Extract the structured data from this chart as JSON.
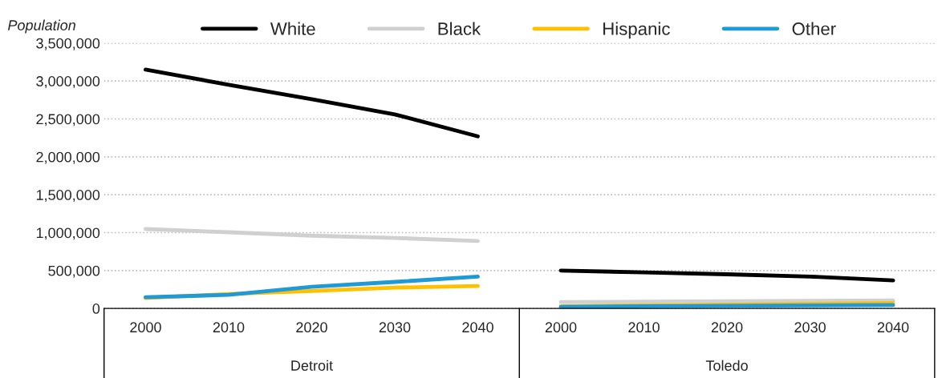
{
  "chart_data": {
    "type": "line",
    "ylabel": "Population",
    "categories": [
      "2000",
      "2010",
      "2020",
      "2030",
      "2040",
      "2000",
      "2010",
      "2020",
      "2030",
      "2040"
    ],
    "series": [
      {
        "name": "White",
        "color": "#000000",
        "values": [
          3150000,
          2950000,
          2760000,
          2560000,
          2270000,
          null,
          null,
          null,
          null,
          null
        ]
      },
      {
        "name": "Black",
        "color": "#d0d0d0",
        "values": [
          1047000,
          1005000,
          960000,
          930000,
          890000,
          null,
          null,
          null,
          null,
          null
        ]
      },
      {
        "name": "Hispanic",
        "color": "#ffc000",
        "values": [
          137000,
          190000,
          230000,
          275000,
          296000,
          null,
          null,
          null,
          null,
          null
        ]
      },
      {
        "name": "Other",
        "color": "#1f9ad6",
        "values": [
          148000,
          180000,
          285000,
          350000,
          420000,
          null,
          null,
          null,
          null,
          null
        ]
      },
      {
        "color": "#000000",
        "values": [
          null,
          null,
          null,
          null,
          null,
          500000,
          475000,
          450000,
          420000,
          370000
        ]
      },
      {
        "color": "#d0d0d0",
        "values": [
          null,
          null,
          null,
          null,
          null,
          85000,
          90000,
          95000,
          100000,
          105000
        ]
      },
      {
        "color": "#ffc000",
        "values": [
          null,
          null,
          null,
          null,
          null,
          30000,
          40000,
          50000,
          60000,
          70000
        ]
      },
      {
        "color": "#1f9ad6",
        "values": [
          null,
          null,
          null,
          null,
          null,
          20000,
          30000,
          35000,
          40000,
          45000
        ]
      }
    ],
    "ylim": [
      0,
      3500000
    ],
    "yticks": [
      {
        "value": 0,
        "label": "0"
      },
      {
        "value": 500000,
        "label": "500,000"
      },
      {
        "value": 1000000,
        "label": "1,000,000"
      },
      {
        "value": 1500000,
        "label": "1,500,000"
      },
      {
        "value": 2000000,
        "label": "2,000,000"
      },
      {
        "value": 2500000,
        "label": "2,500,000"
      },
      {
        "value": 3000000,
        "label": "3,000,000"
      },
      {
        "value": 3500000,
        "label": "3,500,000"
      }
    ],
    "grid": "y",
    "legend": "top",
    "marker": "none",
    "line_style": "solid",
    "annotations": [
      "Detroit",
      "Toledo"
    ]
  }
}
